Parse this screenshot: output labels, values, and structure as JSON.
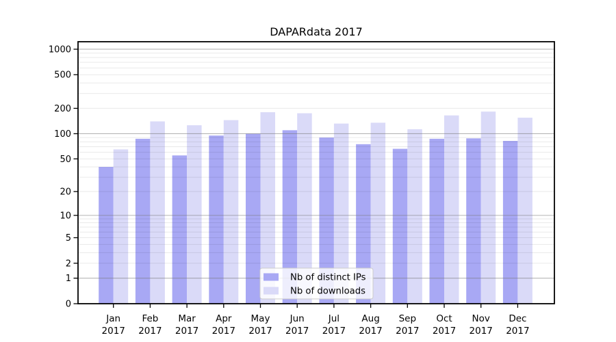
{
  "colors": {
    "distinct_ips_bar": "#a8a8f4",
    "downloads_bar": "#dadaf8",
    "grid_minor": "rgba(0,0,0,0.085)",
    "grid_major": "rgba(120,120,120,0.55)",
    "spine": "#000000",
    "legend_background": "rgba(255,255,255,0.8)",
    "legend_border": "#cccccc"
  },
  "chart_data": {
    "type": "bar",
    "title": "DAPARdata 2017",
    "x_ticklabels": [
      [
        "Jan",
        "2017"
      ],
      [
        "Feb",
        "2017"
      ],
      [
        "Mar",
        "2017"
      ],
      [
        "Apr",
        "2017"
      ],
      [
        "May",
        "2017"
      ],
      [
        "Jun",
        "2017"
      ],
      [
        "Jul",
        "2017"
      ],
      [
        "Aug",
        "2017"
      ],
      [
        "Sep",
        "2017"
      ],
      [
        "Oct",
        "2017"
      ],
      [
        "Nov",
        "2017"
      ],
      [
        "Dec",
        "2017"
      ]
    ],
    "categories": [
      "Jan 2017",
      "Feb 2017",
      "Mar 2017",
      "Apr 2017",
      "May 2017",
      "Jun 2017",
      "Jul 2017",
      "Aug 2017",
      "Sep 2017",
      "Oct 2017",
      "Nov 2017",
      "Dec 2017"
    ],
    "series": [
      {
        "name": "Nb of distinct IPs",
        "key": "distinct-ips",
        "color": "#a8a8f4",
        "values": [
          40,
          87,
          55,
          95,
          100,
          110,
          90,
          75,
          66,
          87,
          88,
          82
        ]
      },
      {
        "name": "Nb of downloads",
        "key": "downloads",
        "color": "#dadaf8",
        "values": [
          65,
          140,
          126,
          145,
          180,
          175,
          132,
          135,
          113,
          165,
          183,
          155
        ]
      }
    ],
    "yscale": "log1p",
    "y_ticks": [
      0,
      1,
      2,
      5,
      10,
      20,
      50,
      100,
      200,
      500,
      1000
    ],
    "ylim": [
      0,
      1200
    ],
    "grid": true,
    "legend_position": "lower center"
  }
}
